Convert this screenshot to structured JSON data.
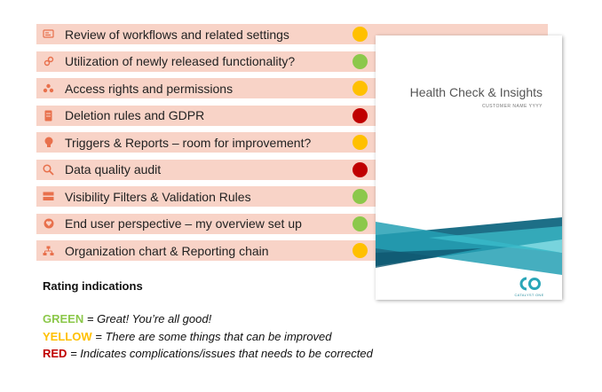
{
  "items": [
    {
      "label": "Review of workflows and related settings",
      "icon": "settings-icon",
      "status": "yellow"
    },
    {
      "label": "Utilization of newly released functionality?",
      "icon": "link-icon",
      "status": "green"
    },
    {
      "label": "Access rights and permissions",
      "icon": "users-icon",
      "status": "yellow"
    },
    {
      "label": "Deletion rules and GDPR",
      "icon": "document-icon",
      "status": "red"
    },
    {
      "label": "Triggers & Reports – room for improvement?",
      "icon": "lightbulb-icon",
      "status": "yellow"
    },
    {
      "label": "Data quality audit",
      "icon": "search-icon",
      "status": "red"
    },
    {
      "label": "Visibility Filters & Validation Rules",
      "icon": "filter-icon",
      "status": "green"
    },
    {
      "label": "End user perspective – my overview set up",
      "icon": "heart-icon",
      "status": "green"
    },
    {
      "label": "Organization chart & Reporting chain",
      "icon": "org-chart-icon",
      "status": "yellow"
    }
  ],
  "colors": {
    "green": "#8cc84b",
    "yellow": "#ffc000",
    "red": "#c00000",
    "row_bg": "#f8d3c7",
    "icon": "#e8704c",
    "brand": "#2aa6b8"
  },
  "document": {
    "title": "Health Check & Insights",
    "subtitle": "CUSTOMER NAME YYYY",
    "logo_text": "CATALYST ONE"
  },
  "legend": {
    "title": "Rating indications",
    "lines": [
      {
        "key": "GREEN",
        "text": "= Great! You’re all good!",
        "color": "#8cc84b"
      },
      {
        "key": "YELLOW",
        "text": "= There are some things that can be improved",
        "color": "#ffc000"
      },
      {
        "key": "RED",
        "text": "= Indicates complications/issues that needs to be corrected",
        "color": "#c00000"
      }
    ]
  }
}
